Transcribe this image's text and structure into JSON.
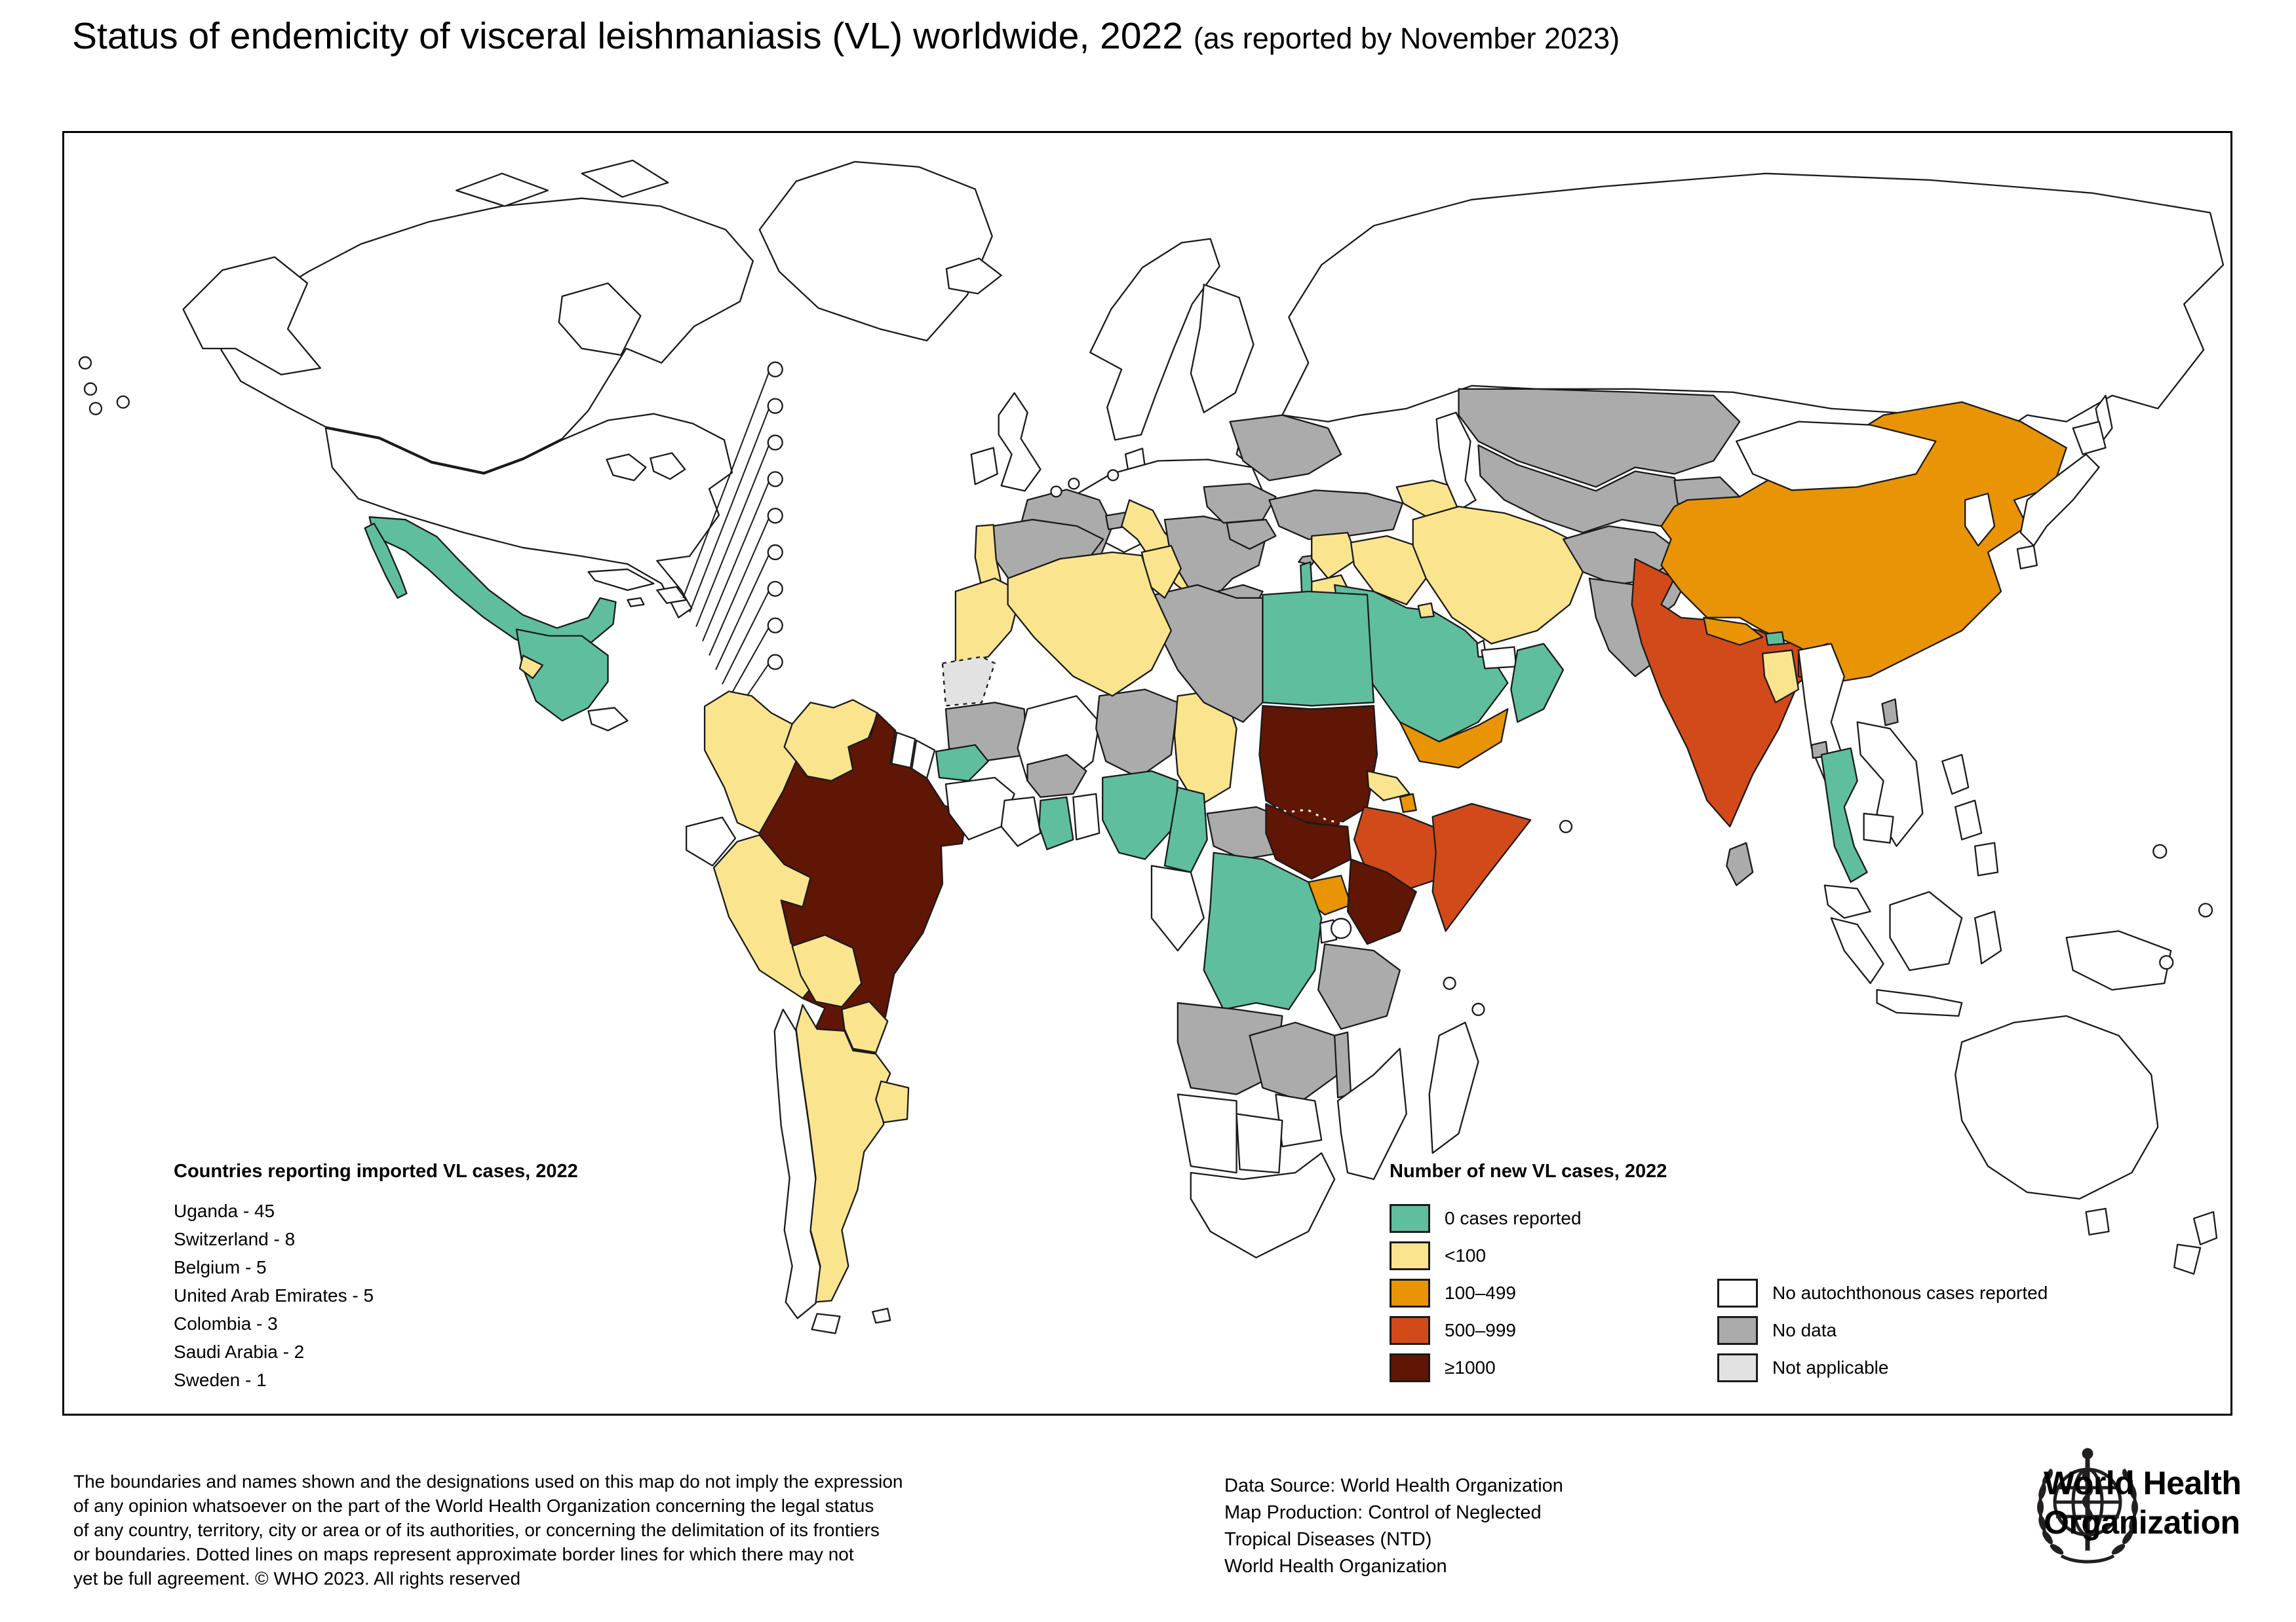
{
  "title": {
    "main": "Status of endemicity of visceral leishmaniasis (VL) worldwide, 2022 ",
    "sub": "(as reported by November 2023)"
  },
  "imported_cases_panel": {
    "title": "Countries reporting imported VL cases, 2022",
    "items": [
      {
        "country": "Uganda",
        "cases": 45,
        "label": "Uganda - 45"
      },
      {
        "country": "Switzerland",
        "cases": 8,
        "label": "Switzerland - 8"
      },
      {
        "country": "Belgium",
        "cases": 5,
        "label": "Belgium - 5"
      },
      {
        "country": "United Arab Emirates",
        "cases": 5,
        "label": "United Arab Emirates - 5"
      },
      {
        "country": "Colombia",
        "cases": 3,
        "label": "Colombia - 3"
      },
      {
        "country": "Saudi Arabia",
        "cases": 2,
        "label": "Saudi Arabia - 2"
      },
      {
        "country": "Sweden",
        "cases": 1,
        "label": "Sweden - 1"
      }
    ]
  },
  "legend": {
    "title": "Number of new VL cases, 2022",
    "items": [
      {
        "key": "zero_cases_reported",
        "label": "0 cases reported"
      },
      {
        "key": "under_100",
        "label": "<100"
      },
      {
        "key": "cases_100_499",
        "label": "100–499"
      },
      {
        "key": "cases_500_999",
        "label": "500–999"
      },
      {
        "key": "cases_1000_plus",
        "label": "≥1000"
      }
    ],
    "secondary_items": [
      {
        "key": "no_autochthonous",
        "label": "No autochthonous cases reported"
      },
      {
        "key": "no_data",
        "label": "No data"
      },
      {
        "key": "not_applicable",
        "label": "Not applicable"
      }
    ]
  },
  "map": {
    "border_color": "#1a1a1a",
    "ocean_color": "#ffffff",
    "category_colors": {
      "zero_cases_reported": "#5FBE9D",
      "under_100": "#FAE48E",
      "cases_100_499": "#E89404",
      "cases_500_999": "#D24A1A",
      "cases_1000_plus": "#5F1605",
      "no_autochthonous": "#FFFFFF",
      "no_data": "#ABABAB",
      "not_applicable": "#E2E2E2"
    },
    "countries_by_category": {
      "zero_cases_reported": [
        "Mexico",
        "Guatemala",
        "Honduras",
        "Nicaragua",
        "Costa Rica",
        "Senegal",
        "Ghana",
        "Nigeria",
        "Cameroon",
        "DR Congo",
        "Egypt",
        "Israel",
        "Saudi Arabia",
        "Oman",
        "Bhutan",
        "Thailand"
      ],
      "under_100": [
        "El Salvador",
        "Colombia",
        "Venezuela",
        "Peru",
        "Bolivia",
        "Paraguay",
        "Argentina",
        "Uruguay",
        "Portugal",
        "Italy",
        "Sicily",
        "Sardinia",
        "Morocco",
        "Algeria",
        "Tunisia",
        "Chad",
        "Eritrea",
        "Syria",
        "Jordan",
        "Iraq",
        "Iran",
        "Caucasus",
        "Kuwait",
        "Bangladesh"
      ],
      "cases_100_499": [
        "China",
        "Nepal",
        "Yemen",
        "Uganda",
        "Djibouti"
      ],
      "cases_500_999": [
        "India",
        "NE India",
        "Ethiopia",
        "Somalia"
      ],
      "cases_1000_plus": [
        "Brazil",
        "Sudan",
        "South Sudan",
        "Kenya"
      ],
      "no_data": [
        "France",
        "Corsica",
        "Spain",
        "Switzerland",
        "Balkans",
        "Greece",
        "Crete",
        "Romania",
        "Bulgaria",
        "Ukraine",
        "Turkey",
        "Cyprus",
        "Libya",
        "Mauritania",
        "Niger",
        "Burkina Faso",
        "Central African Republic",
        "Angola",
        "Zambia",
        "Malawi",
        "Tanzania",
        "Kazakhstan",
        "Uzbekistan",
        "Kyrgyzstan",
        "Afghanistan",
        "Pakistan",
        "Sri Lanka",
        "Taiwan",
        "Hainan"
      ],
      "not_applicable": [
        "Western Sahara",
        "Kashmir"
      ]
    }
  },
  "footer": {
    "disclaimer_lines": [
      "The boundaries and names shown and the designations used on this map do not imply the expression",
      "of any opinion whatsoever on the part of the World Health Organization concerning the legal status",
      "of any country, territory, city or area or of its authorities, or concerning the delimitation of its frontiers",
      "or boundaries. Dotted lines on maps represent approximate border lines for which there may not",
      "yet be full agreement. © WHO 2023. All rights reserved"
    ],
    "source_lines": [
      "Data Source: World Health Organization",
      "Map Production: Control of Neglected",
      "Tropical Diseases (NTD)",
      "World Health Organization"
    ],
    "logo_line1": "World Health",
    "logo_line2": "Organization"
  }
}
